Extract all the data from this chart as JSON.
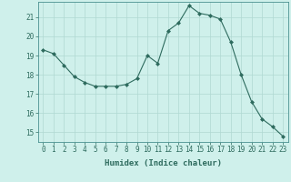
{
  "x": [
    0,
    1,
    2,
    3,
    4,
    5,
    6,
    7,
    8,
    9,
    10,
    11,
    12,
    13,
    14,
    15,
    16,
    17,
    18,
    19,
    20,
    21,
    22,
    23
  ],
  "y": [
    19.3,
    19.1,
    18.5,
    17.9,
    17.6,
    17.4,
    17.4,
    17.4,
    17.5,
    17.8,
    19.0,
    18.6,
    20.3,
    20.7,
    21.6,
    21.2,
    21.1,
    20.9,
    19.7,
    18.0,
    16.6,
    15.7,
    15.3,
    14.8
  ],
  "line_color": "#2e6b5e",
  "marker": "D",
  "marker_size": 2,
  "bg_color": "#cff0eb",
  "grid_color": "#b0d8d2",
  "xlabel": "Humidex (Indice chaleur)",
  "xlim": [
    -0.5,
    23.5
  ],
  "ylim": [
    14.5,
    21.8
  ],
  "yticks": [
    15,
    16,
    17,
    18,
    19,
    20,
    21
  ],
  "xtick_labels": [
    "0",
    "1",
    "2",
    "3",
    "4",
    "5",
    "6",
    "7",
    "8",
    "9",
    "10",
    "11",
    "12",
    "13",
    "14",
    "15",
    "16",
    "17",
    "18",
    "19",
    "20",
    "21",
    "22",
    "23"
  ],
  "tick_fontsize": 5.5,
  "xlabel_fontsize": 6.5
}
